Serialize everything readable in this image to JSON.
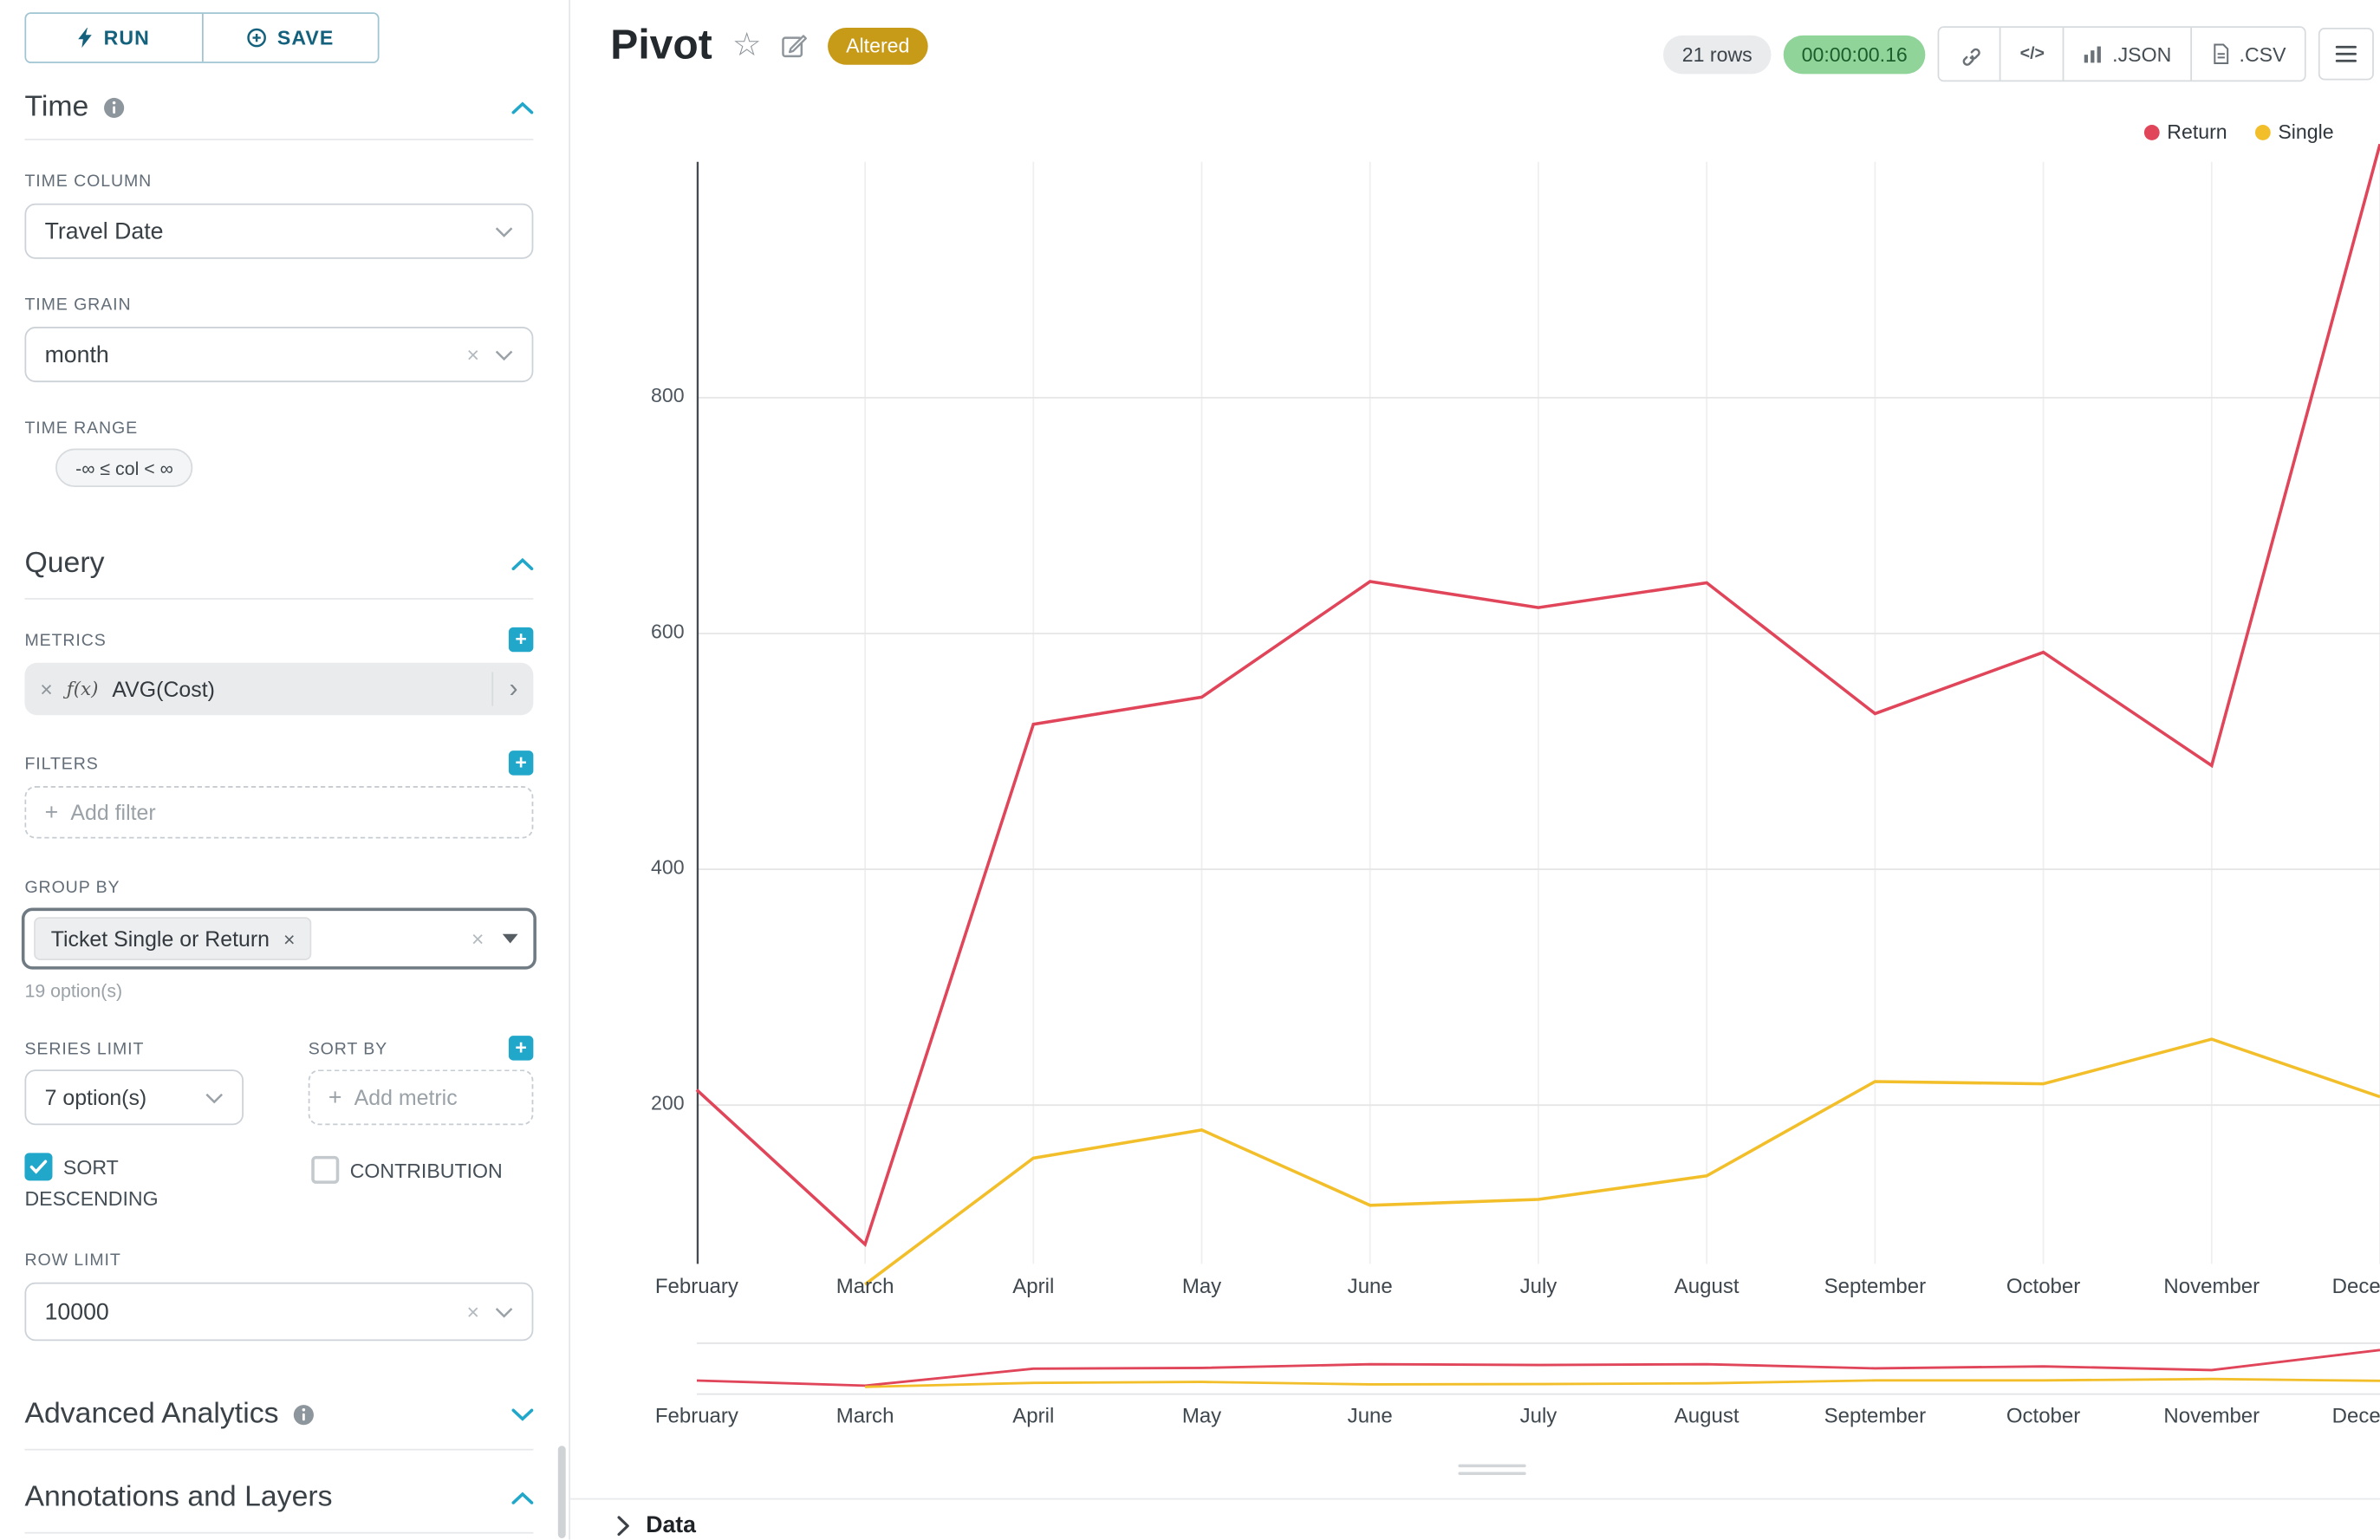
{
  "colors": {
    "accent": "#20a7c9",
    "return_series": "#e0455a",
    "single_series": "#f2bf2b",
    "altered_badge_bg": "#c79a18",
    "timer_bg": "#91d49a",
    "timer_text": "#1c5e2b"
  },
  "icons": {
    "star": "☆",
    "close": "×",
    "caret_right": "›",
    "code": "</>"
  },
  "toolbar": {
    "run_label": "RUN",
    "save_label": "SAVE"
  },
  "panels": {
    "time": {
      "heading": "Time",
      "time_column_label": "TIME COLUMN",
      "time_column_value": "Travel Date",
      "time_grain_label": "TIME GRAIN",
      "time_grain_value": "month",
      "time_range_label": "TIME RANGE",
      "time_range_value": "-∞ ≤ col < ∞"
    },
    "query": {
      "heading": "Query",
      "metrics_label": "METRICS",
      "metric_fx": "ƒ(x)",
      "metric_value": "AVG(Cost)",
      "filters_label": "FILTERS",
      "add_filter_label": "Add filter",
      "group_by_label": "GROUP BY",
      "group_by_value": "Ticket Single or Return",
      "group_by_hint": "19 option(s)",
      "series_limit_label": "SERIES LIMIT",
      "series_limit_value": "7 option(s)",
      "sort_by_label": "SORT BY",
      "add_metric_label": "Add metric",
      "sort_descending_label": "SORT DESCENDING",
      "contribution_label": "CONTRIBUTION",
      "row_limit_label": "ROW LIMIT",
      "row_limit_value": "10000"
    },
    "advanced": {
      "heading": "Advanced Analytics"
    },
    "annotations": {
      "heading": "Annotations and Layers"
    }
  },
  "header": {
    "title": "Pivot",
    "badge": "Altered",
    "row_count": "21 rows",
    "timer": "00:00:00.16",
    "json_label": ".JSON",
    "csv_label": ".CSV"
  },
  "data_panel": {
    "label": "Data"
  },
  "chart_data": {
    "type": "line",
    "categories": [
      "February",
      "March",
      "April",
      "May",
      "June",
      "July",
      "August",
      "September",
      "October",
      "November",
      "December"
    ],
    "series": [
      {
        "name": "Return",
        "color": "#e0455a",
        "values": [
          213,
          82,
          523,
          546,
          644,
          622,
          643,
          532,
          584,
          488,
          1015
        ]
      },
      {
        "name": "Single",
        "color": "#f2bf2b",
        "values": [
          null,
          48,
          155,
          179,
          115,
          120,
          140,
          220,
          218,
          256,
          207
        ]
      }
    ],
    "title": "Pivot",
    "xlabel": "",
    "ylabel": "",
    "ylim": [
      0,
      1050
    ],
    "yticks": [
      200,
      400,
      600,
      800
    ],
    "grid": true,
    "legend_position": "top-right",
    "has_range_selector": true
  }
}
